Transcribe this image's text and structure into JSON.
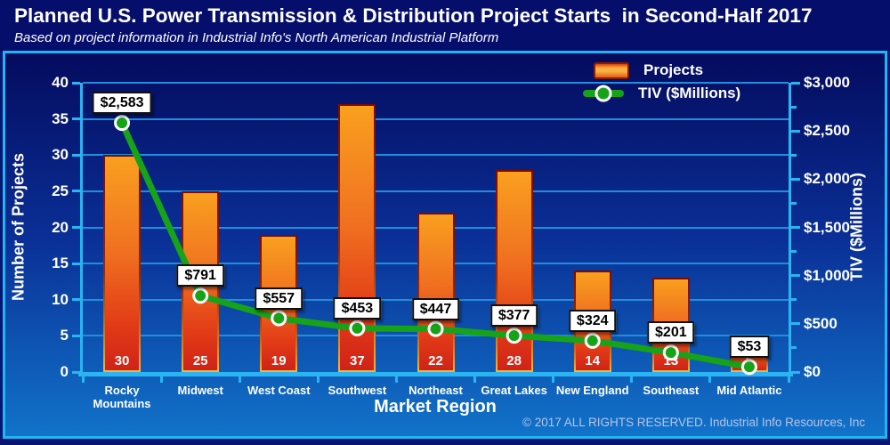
{
  "header": {
    "title": "Planned U.S. Power Transmission & Distribution Project Starts  in Second-Half 2017",
    "subtitle": "Based on project information in Industrial Info's North American Industrial Platform"
  },
  "footer": {
    "copyright": "© 2017 ALL RIGHTS RESERVED. Industrial Info Resources, Inc"
  },
  "colors": {
    "panel_border_cyan": "#1fb6f5",
    "axis_cyan": "#2ab4f2",
    "gridline_blue": "#1e8fdc",
    "bar_top_orange": "#f9a01f",
    "bar_bottom_red": "#d02318",
    "line_green": "#17a317",
    "label_box_bg": "#ffffff",
    "background_top": "#040b5e",
    "background_bottom": "#1173c9"
  },
  "chart_data": {
    "type": "bar",
    "subtype": "combo-bar-line",
    "title": "Planned U.S. Power Transmission & Distribution Project Starts  in Second-Half 2017",
    "xlabel": "Market Region",
    "grid": true,
    "legend_position": "top-right",
    "categories": [
      "Rocky Mountains",
      "Midwest",
      "West Coast",
      "Southwest",
      "Northeast",
      "Great Lakes",
      "New England",
      "Southeast",
      "Mid Atlantic"
    ],
    "series": [
      {
        "name": "Projects",
        "type": "bar",
        "axis": "left",
        "values": [
          30,
          25,
          19,
          37,
          22,
          28,
          14,
          13,
          5
        ]
      },
      {
        "name": "TIV ($Millions)",
        "type": "line",
        "axis": "right",
        "values": [
          2583,
          791,
          557,
          453,
          447,
          377,
          324,
          201,
          53
        ],
        "point_labels": [
          "$2,583",
          "$791",
          "$557",
          "$453",
          "$447",
          "$377",
          "$324",
          "$201",
          "$53"
        ]
      }
    ],
    "y_left": {
      "label": "Number of Projects",
      "min": 0,
      "max": 40,
      "step": 5,
      "tick_labels": [
        "0",
        "5",
        "10",
        "15",
        "20",
        "25",
        "30",
        "35",
        "40"
      ]
    },
    "y_right": {
      "label": "TIV ($Millions)",
      "min": 0,
      "max": 3000,
      "step": 500,
      "minor_step": 250,
      "tick_labels": [
        "$0",
        "$500",
        "$1,000",
        "$1,500",
        "$2,000",
        "$2,500",
        "$3,000"
      ]
    }
  }
}
